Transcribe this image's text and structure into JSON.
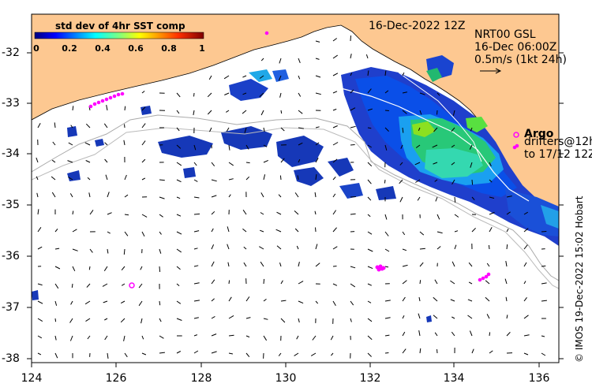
{
  "title": "16-Dec-2022 12Z",
  "colorbar": {
    "label": "std dev of 4hr SST comp",
    "ticks": [
      "0",
      "0.2",
      "0.4",
      "0.6",
      "0.8",
      "1"
    ]
  },
  "current_legend": {
    "line1": "NRT00 GSL",
    "line2": "16-Dec 06:00Z",
    "line3": "0.5m/s (1kt 24h)"
  },
  "argo": {
    "label": "Argo",
    "drifters_line1": "drifters@12h",
    "drifters_line2": "to 17/12 12Z"
  },
  "credit": "© IMOS 19-Dec-2022 15:02 Hobart",
  "axes": {
    "x_ticks": [
      "124",
      "126",
      "128",
      "130",
      "132",
      "134",
      "136"
    ],
    "y_ticks": [
      "-32",
      "-33",
      "-34",
      "-35",
      "-36",
      "-37",
      "-38"
    ]
  },
  "colors": {
    "land": "#fdc891",
    "argo": "#ff00ff",
    "isobath": "#aaaaaa",
    "colorbar_stops": [
      "#00007f",
      "#0000ff",
      "#007fff",
      "#00ffff",
      "#7fff7f",
      "#ffff00",
      "#ff7f00",
      "#ff0000",
      "#7f0000"
    ]
  }
}
